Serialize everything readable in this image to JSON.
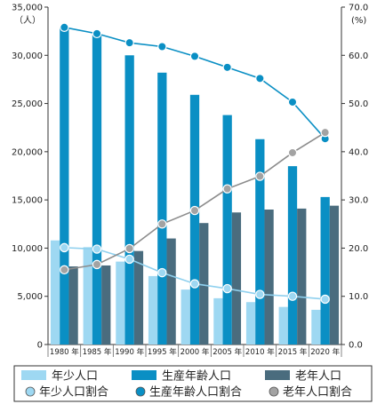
{
  "chart_data": {
    "type": "bar",
    "categories": [
      "1980 年",
      "1985 年",
      "1990 年",
      "1995 年",
      "2000 年",
      "2005 年",
      "2010 年",
      "2015 年",
      "2020 年"
    ],
    "left_axis": {
      "unit": "（人）",
      "ylim": [
        0,
        35000
      ],
      "ticks": [
        "0",
        "5,000",
        "10,000",
        "15,000",
        "20,000",
        "25,000",
        "30,000",
        "35,000"
      ]
    },
    "right_axis": {
      "unit": "(%)",
      "ylim": [
        0,
        70
      ],
      "ticks": [
        "0.0",
        "10.0",
        "20.0",
        "30.0",
        "40.0",
        "50.0",
        "60.0",
        "70.0"
      ]
    },
    "bar_series": [
      {
        "name": "年少人口",
        "color": "#9ed8f2",
        "values": [
          10800,
          10100,
          8600,
          7100,
          5700,
          4800,
          4400,
          3900,
          3600
        ]
      },
      {
        "name": "生産年齢人口",
        "color": "#0a8fc4",
        "values": [
          32900,
          32200,
          30000,
          28200,
          25900,
          23800,
          21300,
          18500,
          15300
        ]
      },
      {
        "name": "老年人口",
        "color": "#4a6c7e",
        "values": [
          8100,
          8200,
          9700,
          11000,
          12600,
          13700,
          14000,
          14100,
          14400
        ]
      }
    ],
    "line_series": [
      {
        "name": "年少人口割合",
        "color": "#9ed8f2",
        "line_color": "#8fd0ee",
        "values": [
          20.1,
          19.8,
          17.7,
          14.9,
          12.6,
          11.6,
          10.4,
          10.0,
          9.4
        ]
      },
      {
        "name": "生産年齢人口割合",
        "color": "#0a8fc4",
        "line_color": "#0a8fc4",
        "values": [
          65.8,
          64.5,
          62.6,
          61.8,
          59.8,
          57.5,
          55.2,
          50.3,
          42.7
        ]
      },
      {
        "name": "老年人口割合",
        "color": "#a3a3a3",
        "line_color": "#8c8c8c",
        "values": [
          15.5,
          16.6,
          19.9,
          25.0,
          27.8,
          32.3,
          34.9,
          39.8,
          44.0
        ]
      }
    ],
    "grid": false,
    "legend_position": "bottom"
  }
}
